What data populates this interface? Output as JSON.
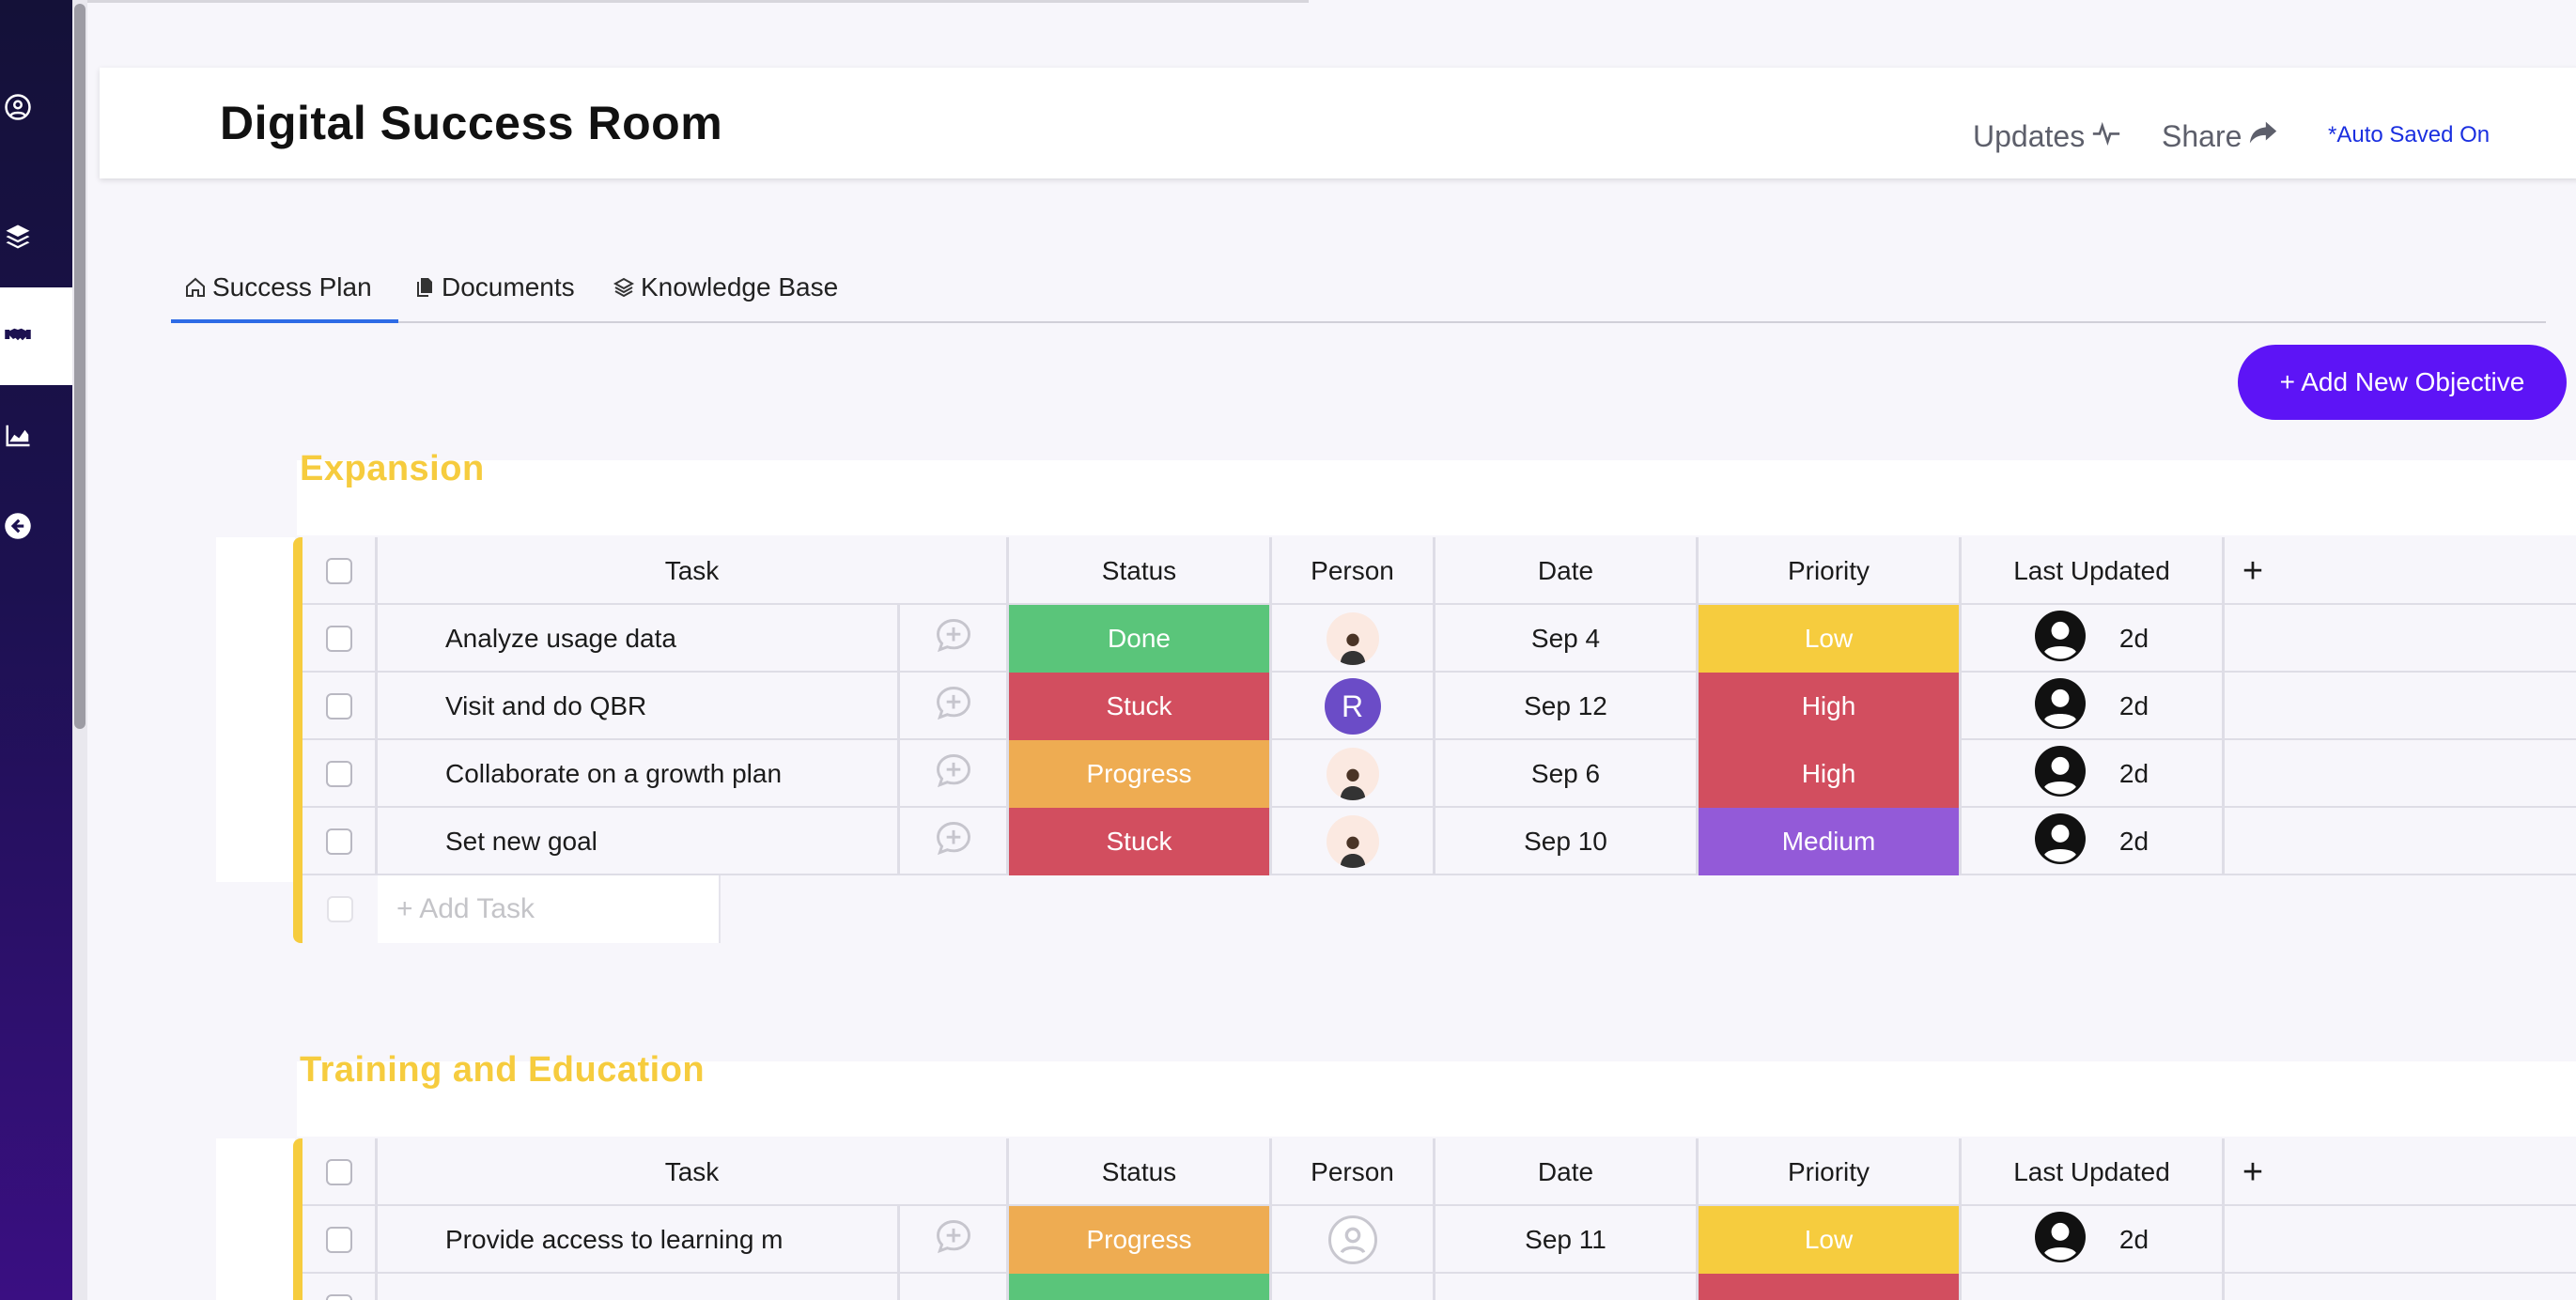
{
  "app": {
    "title": "Digital Success Room",
    "updates_label": "Updates",
    "share_label": "Share",
    "autosave_label": "*Auto Saved On",
    "add_objective_label": "+ Add New Objective"
  },
  "sidebar": {
    "items": [
      {
        "name": "profile",
        "icon": "user-circle-icon"
      },
      {
        "name": "layers",
        "icon": "layers-icon"
      },
      {
        "name": "handshake",
        "icon": "handshake-icon",
        "active": true
      },
      {
        "name": "analytics",
        "icon": "area-chart-icon"
      },
      {
        "name": "back",
        "icon": "arrow-left-circle-icon"
      }
    ]
  },
  "tabs": [
    {
      "label": "Success Plan",
      "icon": "home-icon",
      "active": true
    },
    {
      "label": "Documents",
      "icon": "documents-icon"
    },
    {
      "label": "Knowledge Base",
      "icon": "layers-icon"
    }
  ],
  "columns": {
    "task": "Task",
    "status": "Status",
    "person": "Person",
    "date": "Date",
    "priority": "Priority",
    "last_updated": "Last Updated",
    "add": "+"
  },
  "colors": {
    "Done": "#5ac57a",
    "Stuck": "#d24e5f",
    "Progress": "#eeac52",
    "Low": "#f6cc3e",
    "High": "#d24e5f",
    "Medium": "#935ad8",
    "accent": "#5d14f6",
    "group": "#f6cc3e"
  },
  "groups": [
    {
      "title": "Expansion",
      "add_task_label": "+ Add Task",
      "rows": [
        {
          "task": "Analyze usage data",
          "status": "Done",
          "person": "photo",
          "date": "Sep 4",
          "priority": "Low",
          "updated": "2d"
        },
        {
          "task": "Visit and do QBR",
          "status": "Stuck",
          "person": "R",
          "date": "Sep 12",
          "priority": "High",
          "updated": "2d"
        },
        {
          "task": "Collaborate on a growth plan",
          "status": "Progress",
          "person": "photo",
          "date": "Sep 6",
          "priority": "High",
          "updated": "2d"
        },
        {
          "task": "Set new goal",
          "status": "Stuck",
          "person": "photo",
          "date": "Sep 10",
          "priority": "Medium",
          "updated": "2d"
        }
      ]
    },
    {
      "title": "Training and Education",
      "rows": [
        {
          "task": "Provide access to learning m",
          "status": "Progress",
          "person": "empty",
          "date": "Sep 11",
          "priority": "Low",
          "updated": "2d"
        }
      ]
    }
  ]
}
